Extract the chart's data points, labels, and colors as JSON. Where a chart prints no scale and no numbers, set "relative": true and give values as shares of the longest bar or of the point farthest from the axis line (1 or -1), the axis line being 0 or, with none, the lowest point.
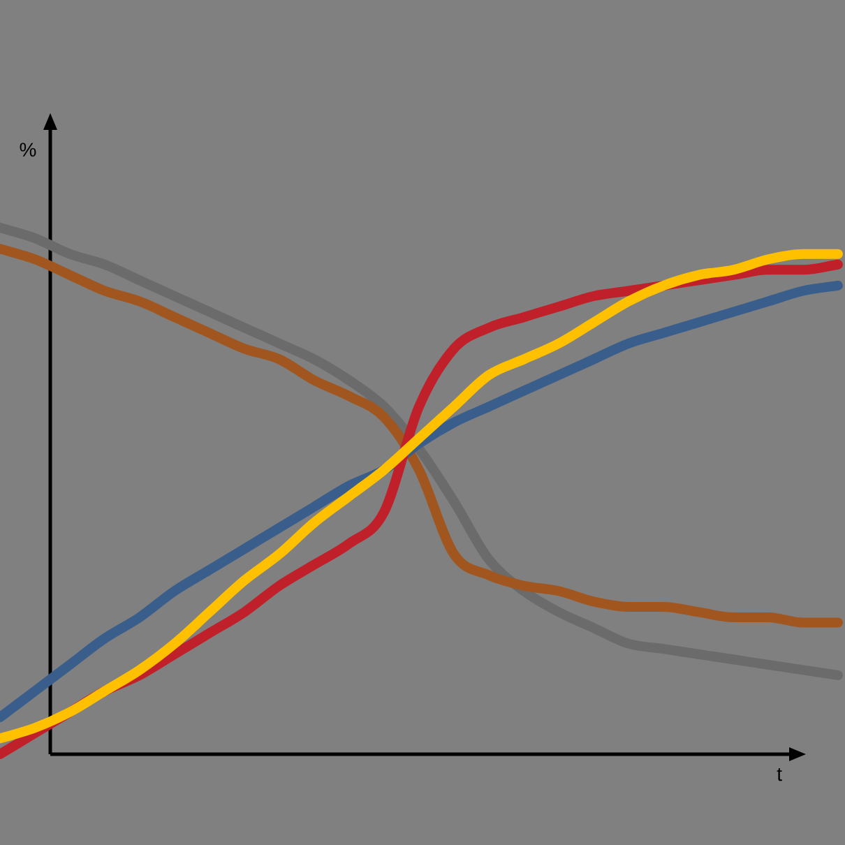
{
  "chart_data": {
    "type": "line",
    "relative": true,
    "xlabel": "t",
    "ylabel": "%",
    "legend": false,
    "marker": "none",
    "line_style": "solid",
    "categories": [
      null,
      null,
      null,
      null,
      null,
      null,
      null,
      null,
      null,
      null,
      null,
      null,
      null,
      null,
      null,
      null,
      null,
      null,
      null,
      null,
      null,
      null,
      null,
      null,
      null
    ],
    "series": [
      {
        "color": "#6b6b6b",
        "values": [
          1.0,
          0.98,
          0.95,
          0.93,
          0.9,
          0.87,
          0.84,
          0.81,
          0.78,
          0.75,
          0.71,
          0.66,
          0.58,
          0.48,
          0.37,
          0.31,
          0.27,
          0.24,
          0.21,
          0.2,
          0.19,
          0.18,
          0.17,
          0.16,
          0.15
        ]
      },
      {
        "color": "#a0561e",
        "values": [
          0.96,
          0.94,
          0.91,
          0.88,
          0.86,
          0.83,
          0.8,
          0.77,
          0.75,
          0.71,
          0.68,
          0.64,
          0.54,
          0.38,
          0.34,
          0.32,
          0.31,
          0.29,
          0.28,
          0.28,
          0.27,
          0.26,
          0.26,
          0.25,
          0.25
        ]
      },
      {
        "color": "#3a5e8c",
        "values": [
          0.07,
          0.12,
          0.17,
          0.22,
          0.26,
          0.31,
          0.35,
          0.39,
          0.43,
          0.47,
          0.51,
          0.54,
          0.59,
          0.63,
          0.66,
          0.69,
          0.72,
          0.75,
          0.78,
          0.8,
          0.82,
          0.84,
          0.86,
          0.88,
          0.89
        ]
      },
      {
        "color": "#c0202a",
        "values": [
          0.0,
          0.04,
          0.08,
          0.12,
          0.15,
          0.19,
          0.23,
          0.27,
          0.32,
          0.36,
          0.4,
          0.46,
          0.66,
          0.77,
          0.81,
          0.83,
          0.85,
          0.87,
          0.88,
          0.89,
          0.9,
          0.91,
          0.92,
          0.92,
          0.93
        ]
      },
      {
        "color": "#ffc000",
        "values": [
          0.03,
          0.05,
          0.08,
          0.12,
          0.16,
          0.21,
          0.27,
          0.33,
          0.38,
          0.44,
          0.49,
          0.54,
          0.6,
          0.66,
          0.72,
          0.75,
          0.78,
          0.82,
          0.86,
          0.89,
          0.91,
          0.92,
          0.94,
          0.95,
          0.95
        ]
      }
    ]
  }
}
